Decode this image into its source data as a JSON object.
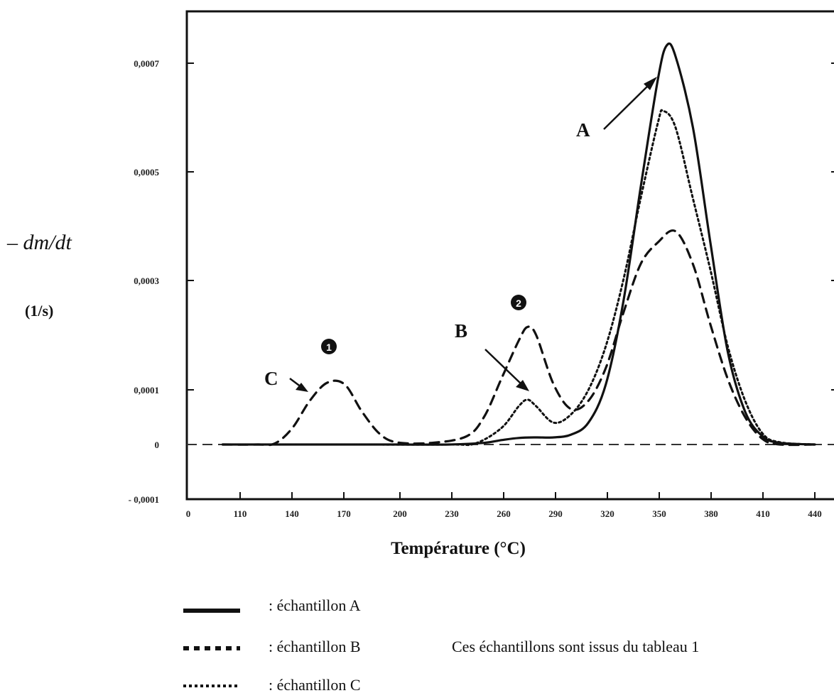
{
  "chart_data": {
    "type": "line",
    "xlabel": "Température (°C)",
    "ylabel": "– dm/dt",
    "ylabel_unit": "(1/s)",
    "x_ticks": [
      "0",
      "110",
      "140",
      "170",
      "200",
      "230",
      "260",
      "290",
      "320",
      "350",
      "380",
      "410",
      "440"
    ],
    "y_ticks": [
      "- 0,0001",
      "0",
      "0,0001",
      "0,0003",
      "0,0005",
      "0,0007"
    ],
    "ylim": [
      -0.0001,
      0.00078
    ],
    "series": [
      {
        "name": "échantillon A",
        "style": "solid",
        "x": [
          100,
          140,
          170,
          200,
          230,
          250,
          260,
          270,
          280,
          290,
          300,
          310,
          320,
          330,
          340,
          350,
          355,
          360,
          370,
          380,
          390,
          400,
          410,
          420,
          440
        ],
        "y": [
          0,
          0,
          0,
          0,
          0,
          3e-06,
          8e-06,
          1.2e-05,
          1.3e-05,
          1.3e-05,
          1.8e-05,
          4e-05,
          0.00011,
          0.00026,
          0.00047,
          0.00067,
          0.00073,
          0.00071,
          0.00058,
          0.00037,
          0.00017,
          6e-05,
          1.5e-05,
          3e-06,
          0
        ]
      },
      {
        "name": "échantillon B",
        "style": "dashed",
        "x": [
          100,
          120,
          130,
          140,
          150,
          160,
          170,
          180,
          190,
          200,
          220,
          240,
          250,
          260,
          270,
          275,
          280,
          290,
          300,
          310,
          320,
          330,
          340,
          350,
          360,
          370,
          380,
          390,
          400,
          410,
          420,
          440
        ],
        "y": [
          0,
          0,
          2e-06,
          3e-05,
          8e-05,
          0.000113,
          0.00011,
          6e-05,
          2e-05,
          4e-06,
          3e-06,
          1.5e-05,
          5e-05,
          0.00012,
          0.00019,
          0.000215,
          0.0002,
          0.00011,
          6.5e-05,
          8e-05,
          0.00014,
          0.00024,
          0.00033,
          0.00037,
          0.00039,
          0.00033,
          0.00022,
          0.00012,
          5e-05,
          1e-05,
          0,
          0
        ]
      },
      {
        "name": "échantillon C",
        "style": "dotted",
        "x": [
          100,
          170,
          230,
          245,
          260,
          270,
          275,
          280,
          290,
          300,
          310,
          320,
          330,
          340,
          350,
          353,
          360,
          370,
          380,
          390,
          400,
          410,
          420,
          440
        ],
        "y": [
          0,
          0,
          0,
          2e-06,
          3e-05,
          7e-05,
          8.2e-05,
          7e-05,
          4e-05,
          5.5e-05,
          0.0001,
          0.00018,
          0.0003,
          0.00045,
          0.00059,
          0.00061,
          0.00058,
          0.00045,
          0.00032,
          0.00018,
          8e-05,
          2e-05,
          4e-06,
          0
        ]
      }
    ],
    "baseline": {
      "style": "dashed",
      "y": 0
    },
    "annotations": [
      {
        "label": "A",
        "target": "échantillon A"
      },
      {
        "label": "B",
        "target": "échantillon C"
      },
      {
        "label": "C",
        "target": "échantillon B"
      },
      {
        "label": "❶",
        "target": "peak 1"
      },
      {
        "label": "❷",
        "target": "peak 2"
      }
    ]
  },
  "legend": {
    "items": [
      {
        "label": ": échantillon A",
        "style": "solid"
      },
      {
        "label": ": échantillon B",
        "style": "dashed"
      },
      {
        "label": ": échantillon C",
        "style": "dotted"
      }
    ],
    "note": "Ces échantillons sont issus du tableau 1"
  }
}
